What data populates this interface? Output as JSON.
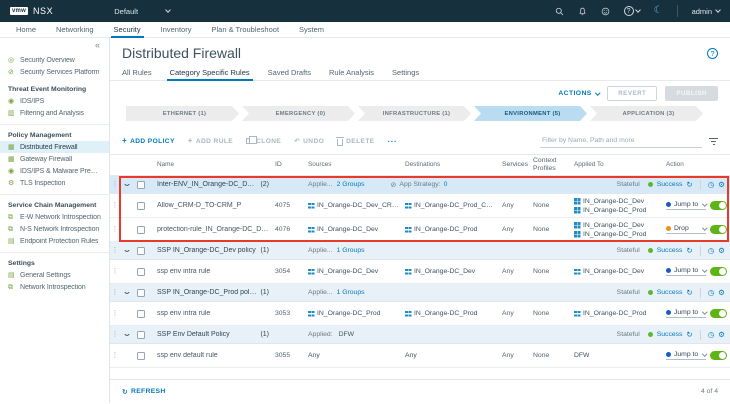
{
  "colors": {
    "accent": "#0079b8",
    "success_green": "#5cb832",
    "toggle_green": "#5eb414",
    "jump_dot_blue": "#1d5bbf",
    "drop_dot_orange": "#ef8e1c",
    "highlight_red": "#e8392b"
  },
  "icons": {
    "glyphs": {
      "help": "?",
      "moon": "☾",
      "collapse": "«",
      "grip": "⋮",
      "gear": "⚙",
      "clock": "◷",
      "refresh": "↻",
      "undo": "↶",
      "strategy": "⊘",
      "plus": "+"
    },
    "sidebar": {
      "security-overview": "◎",
      "security-services-platform": "⊘",
      "ids-ips": "◉",
      "filtering-analysis": "▥",
      "distributed-firewall": "▦",
      "gateway-firewall": "▦",
      "malware-prevention": "◉",
      "tls-inspection": "⚙",
      "ew-introspection": "⧉",
      "ns-introspection": "⧉",
      "endpoint-protection": "▤",
      "general-settings": "▤",
      "network-introspection": "⧉"
    }
  },
  "topbar": {
    "logo": "vmw",
    "product": "NSX",
    "org": "Default",
    "username": "admin"
  },
  "nav": {
    "items": [
      "Home",
      "Networking",
      "Security",
      "Inventory",
      "Plan & Troubleshoot",
      "System"
    ],
    "active_index": 2
  },
  "sidebar": {
    "groups": [
      {
        "items": [
          {
            "icon": "security-overview",
            "label": "Security Overview"
          },
          {
            "icon": "security-services-platform",
            "label": "Security Services Platform"
          }
        ]
      },
      {
        "header": "Threat Event Monitoring",
        "items": [
          {
            "icon": "ids-ips",
            "label": "IDS/IPS"
          },
          {
            "icon": "filtering-analysis",
            "label": "Filtering and Analysis"
          }
        ]
      },
      {
        "header": "Policy Management",
        "divider": true,
        "items": [
          {
            "icon": "distributed-firewall",
            "label": "Distributed Firewall",
            "active": true
          },
          {
            "icon": "gateway-firewall",
            "label": "Gateway Firewall"
          },
          {
            "icon": "malware-prevention",
            "label": "IDS/IPS & Malware Prevention"
          },
          {
            "icon": "tls-inspection",
            "label": "TLS Inspection"
          }
        ]
      },
      {
        "header": "Service Chain Management",
        "divider": true,
        "items": [
          {
            "icon": "ew-introspection",
            "label": "E-W Network Introspection"
          },
          {
            "icon": "ns-introspection",
            "label": "N-S Network Introspection"
          },
          {
            "icon": "endpoint-protection",
            "label": "Endpoint Protection Rules"
          }
        ]
      },
      {
        "header": "Settings",
        "divider": true,
        "items": [
          {
            "icon": "general-settings",
            "label": "General Settings"
          },
          {
            "icon": "network-introspection",
            "label": "Network Introspection"
          }
        ]
      }
    ]
  },
  "page": {
    "title": "Distributed Firewall",
    "tabs": [
      "All Rules",
      "Category Specific Rules",
      "Saved Drafts",
      "Rule Analysis",
      "Settings"
    ],
    "active_tab_index": 1,
    "actions_label": "ACTIONS",
    "revert_label": "REVERT",
    "publish_label": "PUBLISH"
  },
  "categories": [
    {
      "label": "ETHERNET (1)"
    },
    {
      "label": "EMERGENCY (0)"
    },
    {
      "label": "INFRASTRUCTURE (1)"
    },
    {
      "label": "ENVIRONMENT (5)",
      "active": true
    },
    {
      "label": "APPLICATION (3)"
    }
  ],
  "toolbar": {
    "buttons": [
      {
        "id": "add-policy",
        "label": "ADD POLICY",
        "icon": "plus",
        "enabled": true
      },
      {
        "id": "add-rule",
        "label": "ADD RULE",
        "icon": "plus",
        "enabled": false
      },
      {
        "id": "clone",
        "label": "CLONE",
        "icon": "clone",
        "enabled": false
      },
      {
        "id": "undo",
        "label": "UNDO",
        "icon": "undo",
        "enabled": false
      },
      {
        "id": "delete",
        "label": "DELETE",
        "icon": "trash",
        "enabled": false
      },
      {
        "id": "more-actions",
        "label": "...",
        "icon": null,
        "enabled": true
      }
    ],
    "filter_placeholder": "Filter by Name, Path and more"
  },
  "table": {
    "columns": [
      "Name",
      "ID",
      "Sources",
      "Destinations",
      "Services",
      "Context Profiles",
      "Applied To",
      "Action"
    ],
    "policies": [
      {
        "name": "Inter-ENV_IN_Orange-DC_Dev-TO-...",
        "count": "(2)",
        "applied_label": "Applie...",
        "applied_link": "2 Groups",
        "strategy_label": "App Strategy:",
        "strategy_value": "0",
        "stateful": "Stateful",
        "status": "Success",
        "highlighted": true,
        "rules": [
          {
            "name": "Allow_CRM-D_TO-CRM_P",
            "id": "4075",
            "sources": [
              {
                "text": "IN_Orange-DC_Dev_CRM-D",
                "group": true
              }
            ],
            "destinations": [
              {
                "text": "IN_Orange-DC_Prod_CRM-P",
                "group": true
              }
            ],
            "services": "Any",
            "context_profiles": "None",
            "applied_to": [
              {
                "text": "IN_Orange-DC_Dev",
                "group": true
              },
              {
                "text": "IN_Orange-DC_Prod",
                "group": true
              }
            ],
            "action": {
              "label": "Jump to",
              "dot_color": "#1d5bbf"
            },
            "enabled": true
          },
          {
            "name": "protection-rule_IN_Orange-DC_Dev_I...",
            "id": "4076",
            "sources": [
              {
                "text": "IN_Orange-DC_Dev",
                "group": true
              }
            ],
            "destinations": [
              {
                "text": "IN_Orange-DC_Prod",
                "group": true
              }
            ],
            "services": "Any",
            "context_profiles": "None",
            "applied_to": [
              {
                "text": "IN_Orange-DC_Dev",
                "group": true
              },
              {
                "text": "IN_Orange-DC_Prod",
                "group": true
              }
            ],
            "action": {
              "label": "Drop",
              "dot_color": "#ef8e1c"
            },
            "enabled": true
          }
        ]
      },
      {
        "name": "SSP IN_Orange-DC_Dev policy",
        "count": "(1)",
        "applied_label": "Applie...",
        "applied_link": "1 Groups",
        "stateful": "Stateful",
        "status": "Success",
        "rules": [
          {
            "name": "ssp env intra rule",
            "id": "3054",
            "sources": [
              {
                "text": "IN_Orange-DC_Dev",
                "group": true
              }
            ],
            "destinations": [
              {
                "text": "IN_Orange-DC_Dev",
                "group": true
              }
            ],
            "services": "Any",
            "context_profiles": "None",
            "applied_to": [
              {
                "text": "IN_Orange-DC_Dev",
                "group": true
              }
            ],
            "action": {
              "label": "Jump to",
              "dot_color": "#1d5bbf"
            },
            "enabled": true
          }
        ]
      },
      {
        "name": "SSP IN_Orange-DC_Prod policy",
        "count": "(1)",
        "applied_label": "Applie...",
        "applied_link": "1 Groups",
        "stateful": "Stateful",
        "status": "Success",
        "rules": [
          {
            "name": "ssp env intra rule",
            "id": "3053",
            "sources": [
              {
                "text": "IN_Orange-DC_Prod",
                "group": true
              }
            ],
            "destinations": [
              {
                "text": "IN_Orange-DC_Prod",
                "group": true
              }
            ],
            "services": "Any",
            "context_profiles": "None",
            "applied_to": [
              {
                "text": "IN_Orange-DC_Prod",
                "group": true
              }
            ],
            "action": {
              "label": "Jump to",
              "dot_color": "#1d5bbf"
            },
            "enabled": true
          }
        ]
      },
      {
        "name": "SSP Env Default Policy",
        "count": "(1)",
        "applied_label": "Applied:",
        "applied_value": "DFW",
        "stateful": "Stateful",
        "status": "Success",
        "rules": [
          {
            "name": "ssp env default rule",
            "id": "3055",
            "sources": [
              {
                "text": "Any",
                "group": false
              }
            ],
            "destinations": [
              {
                "text": "Any",
                "group": false
              }
            ],
            "services": "Any",
            "context_profiles": "None",
            "applied_to": [
              {
                "text": "DFW",
                "group": false
              }
            ],
            "action": {
              "label": "Jump to",
              "dot_color": "#1d5bbf"
            },
            "enabled": true
          }
        ]
      }
    ]
  },
  "footer": {
    "refresh_label": "REFRESH",
    "count": "4 of 4"
  }
}
